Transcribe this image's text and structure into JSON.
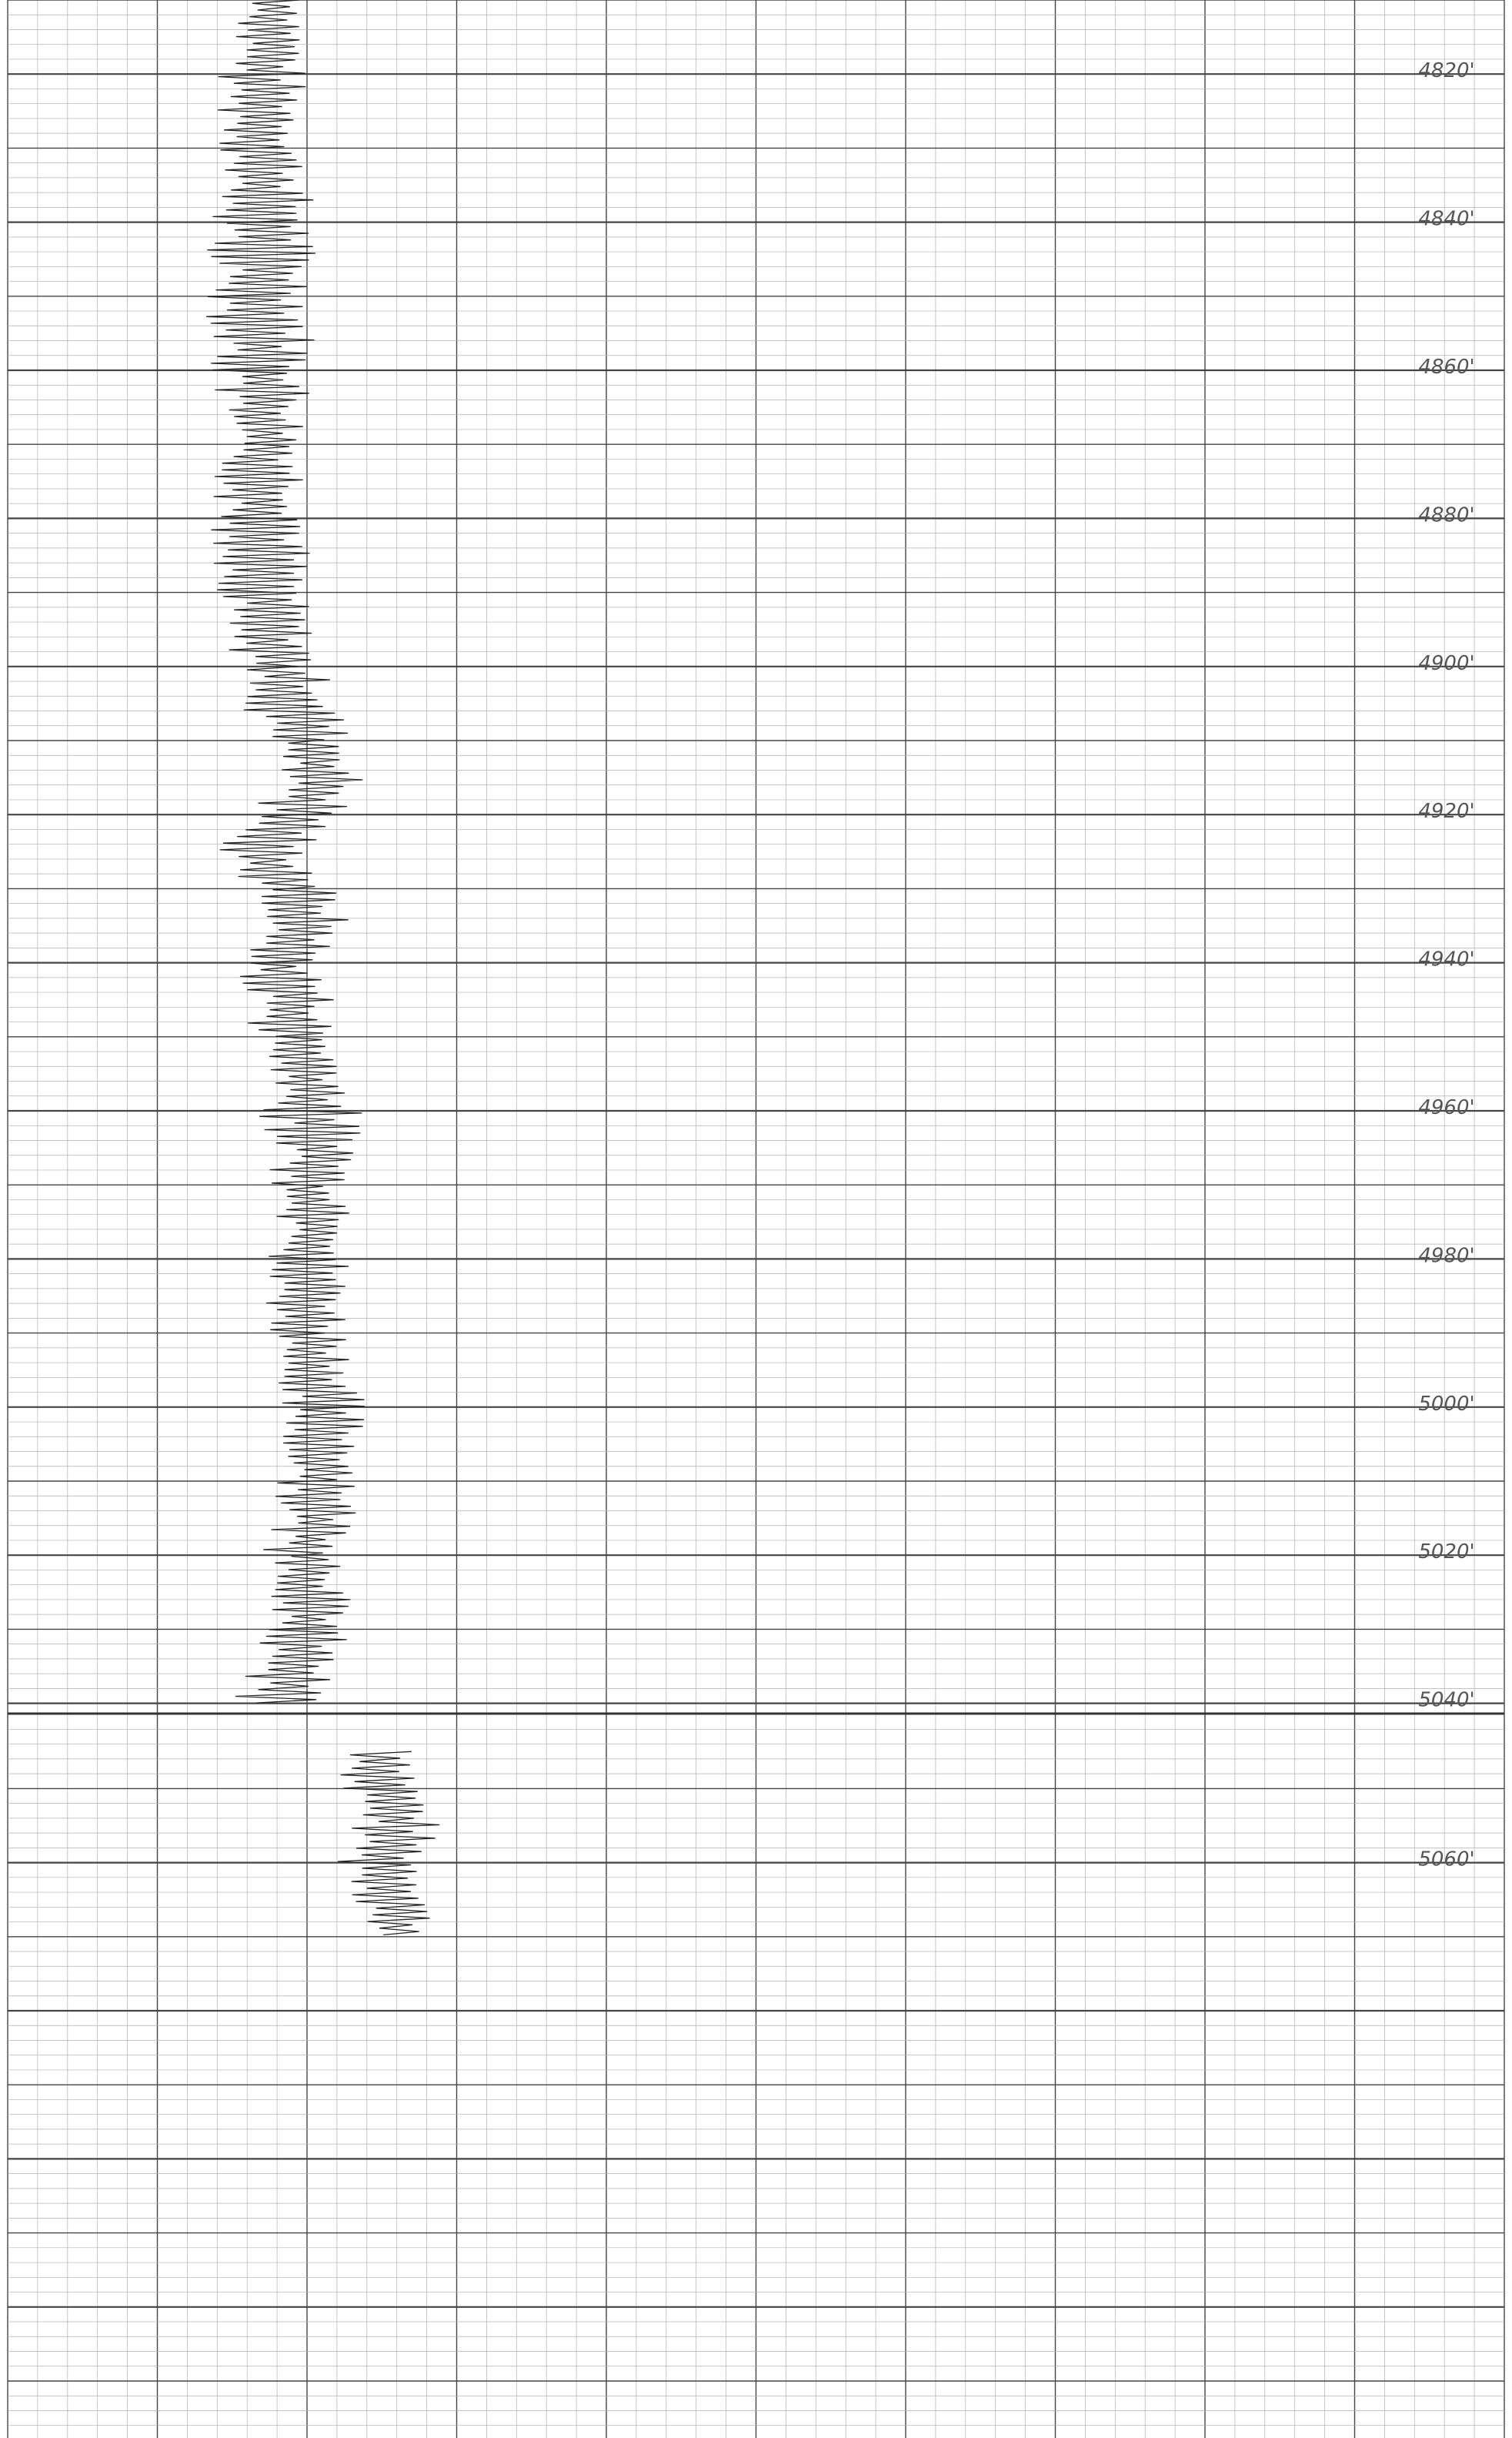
{
  "chart_data": {
    "type": "line",
    "title": "",
    "xlabel": "",
    "ylabel": "",
    "grid": true,
    "colors": {
      "trace": "#222222",
      "grid_major": "#444444",
      "grid_minor": "#b0b0b0",
      "label": "#555555"
    },
    "sections": [
      {
        "name": "upper",
        "depth_range": [
          4810,
          5040
        ],
        "depth_labels": [
          "4820'",
          "4840'",
          "4860'",
          "4880'",
          "4900'",
          "4920'",
          "4940'",
          "4960'",
          "4980'",
          "5000'",
          "5020'",
          "5040'"
        ],
        "trace": {
          "depth": [
            4810,
            4820,
            4830,
            4840,
            4850,
            4860,
            4870,
            4880,
            4890,
            4900,
            4905,
            4910,
            4915,
            4920,
            4925,
            4930,
            4935,
            4940,
            4945,
            4950,
            4955,
            4960,
            4965,
            4970,
            4975,
            4980,
            4990,
            5000,
            5010,
            5020,
            5030,
            5040
          ],
          "value": [
            0.18,
            0.17,
            0.17,
            0.17,
            0.17,
            0.17,
            0.17,
            0.17,
            0.17,
            0.18,
            0.19,
            0.2,
            0.21,
            0.19,
            0.17,
            0.19,
            0.2,
            0.18,
            0.19,
            0.19,
            0.2,
            0.2,
            0.21,
            0.2,
            0.21,
            0.2,
            0.2,
            0.21,
            0.21,
            0.2,
            0.2,
            0.18
          ],
          "amplitude": [
            0.015,
            0.02,
            0.02,
            0.025,
            0.025,
            0.025,
            0.02,
            0.025,
            0.02,
            0.02,
            0.025,
            0.02,
            0.02,
            0.025,
            0.02,
            0.02,
            0.02,
            0.02,
            0.02,
            0.02,
            0.02,
            0.025,
            0.02,
            0.02,
            0.02,
            0.02,
            0.02,
            0.02,
            0.02,
            0.02,
            0.02,
            0.02
          ]
        }
      },
      {
        "name": "lower",
        "depth_labels": [
          "5060'"
        ],
        "trace": {
          "depth": [
            5045,
            5050,
            5055,
            5060,
            5065,
            5070
          ],
          "value": [
            0.25,
            0.25,
            0.26,
            0.25,
            0.26,
            0.26
          ],
          "amplitude": [
            0.02,
            0.02,
            0.02,
            0.02,
            0.02,
            0.015
          ]
        }
      }
    ]
  }
}
